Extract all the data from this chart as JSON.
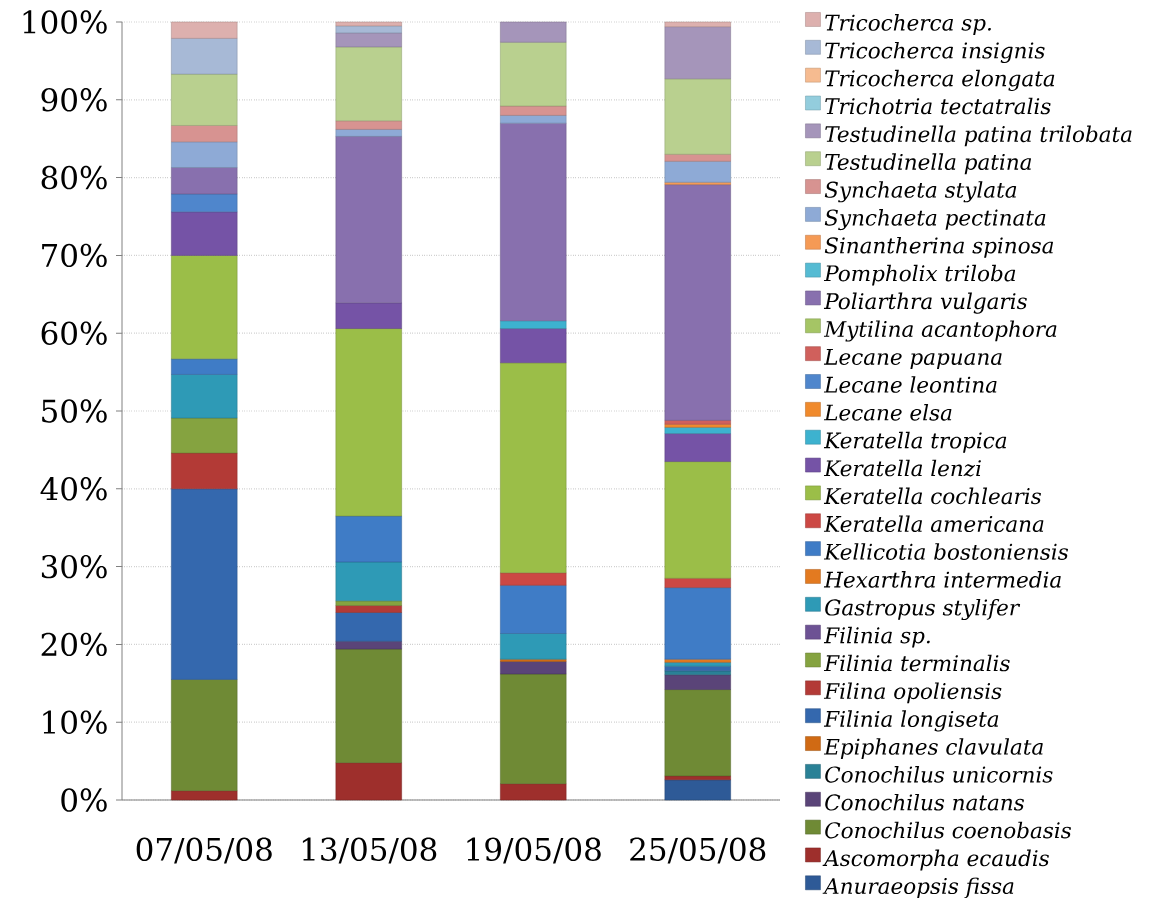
{
  "chart_data": {
    "type": "bar",
    "stacked": true,
    "categories": [
      "07/05/08",
      "13/05/08",
      "19/05/08",
      "25/05/08"
    ],
    "ylim": [
      0,
      100
    ],
    "yticks": [
      {
        "value": 0,
        "label": "0%"
      },
      {
        "value": 10,
        "label": "10%"
      },
      {
        "value": 20,
        "label": "20%"
      },
      {
        "value": 30,
        "label": "30%"
      },
      {
        "value": 40,
        "label": "40%"
      },
      {
        "value": 50,
        "label": "50%"
      },
      {
        "value": 60,
        "label": "60%"
      },
      {
        "value": 70,
        "label": "70%"
      },
      {
        "value": 80,
        "label": "80%"
      },
      {
        "value": 90,
        "label": "90%"
      },
      {
        "value": 100,
        "label": "100%"
      }
    ],
    "grid": "y",
    "legend": "right",
    "series": [
      {
        "name": "Anuraeopsis fissa",
        "color": "#2e5a97",
        "values": [
          null,
          null,
          null,
          2.6
        ]
      },
      {
        "name": "Ascomorpha ecaudis",
        "color": "#9e2f2c",
        "values": [
          1.2,
          4.8,
          2.1,
          0.5
        ]
      },
      {
        "name": "Conochilus coenobasis",
        "color": "#6f8a35",
        "values": [
          14.3,
          14.6,
          14.1,
          11.1
        ]
      },
      {
        "name": "Conochilus natans",
        "color": "#5a4478",
        "values": [
          null,
          1.0,
          1.6,
          1.9
        ]
      },
      {
        "name": "Conochilus unicornis",
        "color": "#2a8196",
        "values": [
          null,
          null,
          null,
          0.5
        ]
      },
      {
        "name": "Epiphanes clavulata",
        "color": "#d06a14",
        "values": [
          null,
          null,
          0.3,
          null
        ]
      },
      {
        "name": "Filinia longiseta",
        "color": "#3468ae",
        "values": [
          24.5,
          3.7,
          null,
          0.6
        ]
      },
      {
        "name": "Filina opoliensis",
        "color": "#b33a36",
        "values": [
          4.6,
          0.9,
          null,
          null
        ]
      },
      {
        "name": "Filinia terminalis",
        "color": "#85a340",
        "values": [
          4.5,
          0.6,
          null,
          null
        ]
      },
      {
        "name": "Filinia sp.",
        "color": "#6d5294",
        "values": [
          null,
          null,
          null,
          null
        ]
      },
      {
        "name": "Gastropus stylifer",
        "color": "#2e9ab6",
        "values": [
          5.6,
          5.0,
          3.3,
          0.5
        ]
      },
      {
        "name": "Hexarthra intermedia",
        "color": "#e37a20",
        "values": [
          null,
          null,
          null,
          0.4
        ]
      },
      {
        "name": "Kellicotia bostoniensis",
        "color": "#3f7cc6",
        "values": [
          2.0,
          5.9,
          6.2,
          9.2
        ]
      },
      {
        "name": "Keratella americana",
        "color": "#cc4844",
        "values": [
          null,
          null,
          1.6,
          1.2
        ]
      },
      {
        "name": "Keratella cochlearis",
        "color": "#9bbe48",
        "values": [
          13.3,
          24.1,
          27.0,
          15.0
        ]
      },
      {
        "name": "Keratella lenzi",
        "color": "#7553a6",
        "values": [
          5.6,
          3.3,
          4.4,
          3.6
        ]
      },
      {
        "name": "Keratella tropica",
        "color": "#3db2cf",
        "values": [
          null,
          null,
          1.0,
          0.8
        ]
      },
      {
        "name": "Lecane elsa",
        "color": "#f08a2c",
        "values": [
          null,
          null,
          null,
          0.4
        ]
      },
      {
        "name": "Lecane leontina",
        "color": "#4f86cc",
        "values": [
          2.3,
          null,
          null,
          null
        ]
      },
      {
        "name": "Lecane papuana",
        "color": "#d0605c",
        "values": [
          null,
          null,
          null,
          0.5
        ]
      },
      {
        "name": "Mytilina acantophora",
        "color": "#a5c565",
        "values": [
          null,
          null,
          null,
          null
        ]
      },
      {
        "name": "Poliarthra vulgaris",
        "color": "#8870ae",
        "values": [
          3.4,
          21.4,
          25.4,
          30.3
        ]
      },
      {
        "name": "Pompholix triloba",
        "color": "#55bbd3",
        "values": [
          null,
          null,
          null,
          null
        ]
      },
      {
        "name": "Sinantherina spinosa",
        "color": "#f59a55",
        "values": [
          null,
          null,
          null,
          0.3
        ]
      },
      {
        "name": "Synchaeta pectinata",
        "color": "#8eaad6",
        "values": [
          3.3,
          0.9,
          1.0,
          2.7
        ]
      },
      {
        "name": "Synchaeta stylata",
        "color": "#d79391",
        "values": [
          2.1,
          1.1,
          1.2,
          0.9
        ]
      },
      {
        "name": "Testudinella patina",
        "color": "#b9d08f",
        "values": [
          6.6,
          9.5,
          8.2,
          9.7
        ]
      },
      {
        "name": "Testudinella patina trilobata",
        "color": "#a595ba",
        "values": [
          null,
          1.8,
          2.6,
          6.7
        ]
      },
      {
        "name": "Trichotria tectatralis",
        "color": "#93cddd",
        "values": [
          null,
          null,
          null,
          null
        ]
      },
      {
        "name": "Tricocherca elongata",
        "color": "#f6bb90",
        "values": [
          null,
          null,
          null,
          null
        ]
      },
      {
        "name": "Tricocherca insignis",
        "color": "#a7b9d6",
        "values": [
          4.6,
          0.9,
          null,
          null
        ]
      },
      {
        "name": "Tricocherca sp.",
        "color": "#ddb0ae",
        "values": [
          2.1,
          0.5,
          null,
          0.6
        ]
      }
    ]
  }
}
